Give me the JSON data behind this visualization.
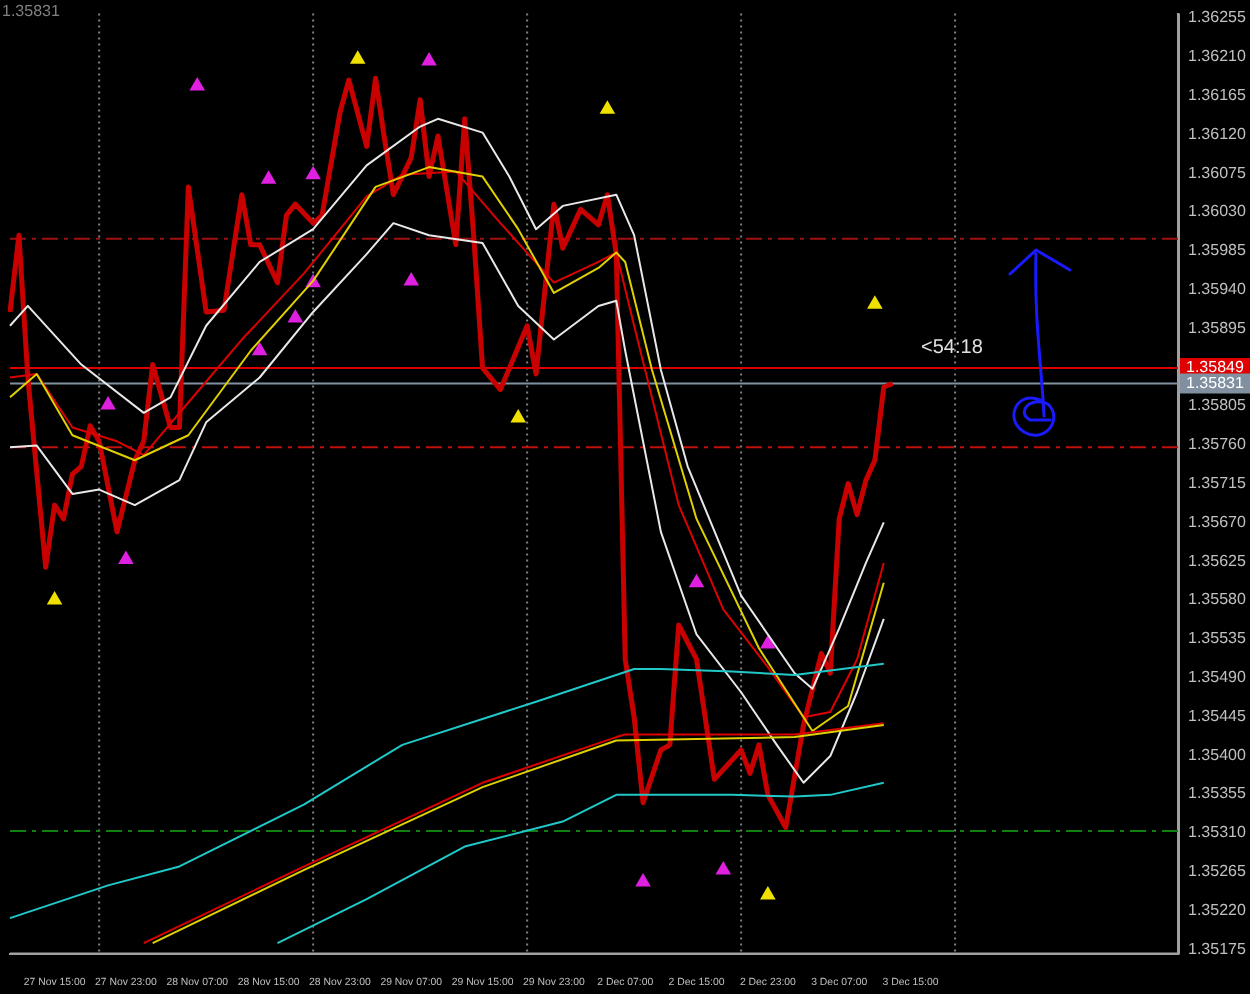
{
  "chart_data": {
    "type": "line",
    "legend": false,
    "ylim": [
      1.3517,
      1.3626
    ],
    "categories": [
      null,
      null,
      null,
      null,
      null,
      "27 Nov 15:00",
      null,
      null,
      null,
      null,
      null,
      null,
      null,
      "27 Nov 23:00",
      null,
      null,
      null,
      null,
      null,
      null,
      null,
      "28 Nov 07:00",
      null,
      null,
      null,
      null,
      null,
      null,
      null,
      "28 Nov 15:00",
      null,
      null,
      null,
      null,
      null,
      null,
      null,
      "28 Nov 23:00",
      null,
      null,
      null,
      null,
      null,
      null,
      null,
      "29 Nov 07:00",
      null,
      null,
      null,
      null,
      null,
      null,
      null,
      "29 Nov 15:00",
      null,
      null,
      null,
      null,
      null,
      null,
      null,
      "29 Nov 23:00",
      null,
      null,
      null,
      null,
      null,
      null,
      null,
      "2 Dec 07:00",
      null,
      null,
      null,
      null,
      null,
      null,
      null,
      "2 Dec 15:00",
      null,
      null,
      null,
      null,
      null,
      null,
      null,
      "2 Dec 23:00",
      null,
      null,
      null,
      null,
      null,
      null,
      null,
      "3 Dec 07:00",
      null,
      null,
      null,
      null,
      null,
      null,
      null,
      "3 Dec 15:00",
      null,
      null,
      null,
      null,
      null,
      null,
      null,
      null,
      null,
      null,
      null,
      null,
      null,
      null,
      null,
      null,
      null,
      null,
      null,
      null,
      null,
      null,
      null,
      null,
      null,
      null,
      null,
      null,
      null,
      null
    ],
    "yticks": [
      1.35175,
      {
        "value": 1.3522,
        "label": "1.35220"
      },
      1.35265,
      {
        "value": 1.3531,
        "label": "1.35310"
      },
      1.35355,
      {
        "value": 1.354,
        "label": "1.35400"
      },
      1.35445,
      {
        "value": 1.3549,
        "label": "1.35490"
      },
      1.35535,
      {
        "value": 1.3558,
        "label": "1.35580"
      },
      1.35625,
      {
        "value": 1.3567,
        "label": "1.35670"
      },
      1.35715,
      {
        "value": 1.3576,
        "label": "1.35760"
      },
      1.35805,
      {
        "value": 1.3585,
        "label": null
      },
      1.35895,
      {
        "value": 1.3594,
        "label": "1.35940"
      },
      1.35985,
      {
        "value": 1.3603,
        "label": "1.36030"
      },
      1.36075,
      {
        "value": 1.3612,
        "label": "1.36120"
      },
      1.36165,
      {
        "value": 1.3621,
        "label": "1.36210"
      },
      1.36255
    ],
    "series": [
      {
        "type": "line",
        "color": "#20c8c8",
        "values": [
          1.35211,
          null,
          null,
          null,
          null,
          null,
          null,
          null,
          null,
          null,
          null,
          1.35249,
          null,
          null,
          null,
          null,
          null,
          null,
          null,
          1.35271,
          null,
          null,
          null,
          null,
          null,
          null,
          null,
          null,
          null,
          null,
          null,
          null,
          null,
          1.35343,
          null,
          null,
          null,
          null,
          null,
          null,
          null,
          null,
          null,
          null,
          1.35412,
          null,
          null,
          null,
          null,
          null,
          null,
          null,
          null,
          null,
          null,
          null,
          null,
          null,
          null,
          1.35462,
          null,
          null,
          null,
          null,
          null,
          null,
          null,
          null,
          null,
          null,
          1.355,
          null,
          null,
          1.355,
          null,
          null,
          null,
          null,
          null,
          null,
          null,
          1.35497,
          null,
          null,
          null,
          null,
          null,
          null,
          1.35493,
          null,
          null,
          null,
          null,
          null,
          null,
          null,
          null,
          null,
          1.35506,
          null,
          null,
          null,
          null,
          null,
          null,
          null,
          null,
          null,
          null,
          null,
          null,
          null,
          null,
          null,
          null,
          null,
          null,
          null,
          null,
          null,
          null,
          null,
          null,
          null,
          null,
          null,
          null,
          null,
          null,
          null,
          null,
          null
        ]
      },
      {
        "type": "line",
        "color": "#20c8c8",
        "values": [
          null,
          null,
          null,
          null,
          null,
          null,
          null,
          null,
          null,
          null,
          null,
          null,
          null,
          null,
          null,
          null,
          null,
          null,
          null,
          null,
          null,
          null,
          null,
          null,
          null,
          null,
          null,
          null,
          null,
          null,
          1.35182,
          null,
          null,
          null,
          null,
          null,
          null,
          null,
          null,
          null,
          1.35233,
          null,
          null,
          null,
          null,
          null,
          null,
          null,
          null,
          null,
          null,
          1.35294,
          null,
          null,
          null,
          null,
          null,
          null,
          null,
          null,
          null,
          null,
          1.35323,
          null,
          null,
          null,
          null,
          null,
          1.35354,
          null,
          null,
          null,
          null,
          null,
          null,
          null,
          null,
          null,
          null,
          null,
          null,
          1.35354,
          null,
          null,
          null,
          null,
          null,
          null,
          1.35352,
          null,
          null,
          null,
          1.35354,
          null,
          null,
          null,
          null,
          null,
          1.35368,
          null,
          null,
          null,
          null,
          null,
          null,
          null,
          null,
          null,
          null,
          null,
          null,
          null,
          null,
          null,
          null,
          null,
          null,
          null,
          null,
          null,
          null,
          null,
          null,
          null,
          null,
          null,
          null,
          null,
          null,
          null,
          null,
          null
        ]
      },
      {
        "type": "line",
        "color": "#e0d000",
        "values": [
          null,
          null,
          null,
          null,
          null,
          null,
          null,
          null,
          null,
          null,
          null,
          null,
          null,
          null,
          null,
          null,
          1.35182,
          null,
          null,
          null,
          null,
          null,
          null,
          null,
          null,
          null,
          null,
          null,
          null,
          null,
          null,
          null,
          null,
          1.35267,
          null,
          null,
          null,
          null,
          null,
          null,
          null,
          null,
          null,
          null,
          null,
          null,
          null,
          null,
          null,
          null,
          null,
          null,
          null,
          1.35363,
          null,
          null,
          null,
          null,
          null,
          null,
          null,
          null,
          null,
          null,
          null,
          null,
          null,
          null,
          1.35417,
          null,
          null,
          null,
          null,
          null,
          null,
          null,
          null,
          null,
          null,
          null,
          null,
          null,
          null,
          null,
          null,
          null,
          null,
          null,
          1.35421,
          null,
          null,
          null,
          null,
          null,
          null,
          null,
          null,
          null,
          1.35435,
          null,
          null,
          null,
          null,
          null,
          null,
          null,
          null,
          null,
          null,
          null,
          null,
          null,
          null,
          null,
          null,
          null,
          null,
          null,
          null,
          null,
          null,
          null,
          null,
          null,
          null,
          null,
          null,
          null,
          null,
          null,
          null,
          null
        ]
      },
      {
        "type": "line",
        "color": "#dd0000",
        "values": [
          null,
          null,
          null,
          null,
          null,
          null,
          null,
          null,
          null,
          null,
          null,
          null,
          null,
          null,
          null,
          1.35182,
          null,
          null,
          null,
          null,
          null,
          null,
          null,
          null,
          null,
          null,
          null,
          null,
          null,
          null,
          null,
          null,
          null,
          1.35271,
          null,
          null,
          null,
          null,
          null,
          null,
          null,
          null,
          null,
          null,
          null,
          null,
          null,
          null,
          null,
          null,
          null,
          null,
          null,
          1.35368,
          null,
          null,
          null,
          null,
          null,
          null,
          null,
          null,
          null,
          null,
          null,
          null,
          null,
          null,
          1.35421,
          1.35424,
          null,
          null,
          null,
          null,
          null,
          null,
          null,
          null,
          null,
          null,
          null,
          null,
          null,
          null,
          null,
          null,
          null,
          null,
          1.35424,
          null,
          null,
          null,
          null,
          null,
          null,
          null,
          null,
          null,
          1.35437,
          null,
          null,
          null,
          null,
          null,
          null,
          null,
          null,
          null,
          null,
          null,
          null,
          null,
          null,
          null,
          null,
          null,
          null,
          null,
          null,
          null,
          null,
          null,
          null,
          null,
          null,
          null,
          null,
          null,
          null,
          null,
          null,
          null
        ]
      },
      {
        "type": "line",
        "color": "#e8e8e8",
        "values": [
          1.35898,
          null,
          1.35921,
          null,
          null,
          null,
          null,
          null,
          1.35853,
          null,
          null,
          null,
          null,
          null,
          null,
          1.35797,
          null,
          null,
          1.35815,
          null,
          null,
          null,
          1.35898,
          null,
          null,
          null,
          null,
          null,
          1.35972,
          null,
          null,
          null,
          null,
          null,
          1.3601,
          null,
          null,
          null,
          null,
          null,
          1.36084,
          null,
          null,
          null,
          null,
          null,
          1.36129,
          null,
          1.36138,
          null,
          null,
          null,
          null,
          1.36122,
          null,
          null,
          1.36071,
          null,
          null,
          1.3601,
          null,
          null,
          1.36037,
          null,
          null,
          null,
          null,
          null,
          1.3605,
          null,
          1.36003,
          null,
          null,
          1.35847,
          null,
          null,
          1.35735,
          null,
          null,
          null,
          null,
          null,
          1.35585,
          null,
          null,
          null,
          null,
          null,
          1.35495,
          null,
          1.35477,
          null,
          null,
          1.35547,
          null,
          null,
          1.35623,
          null,
          1.3567,
          null,
          null,
          null,
          null,
          null,
          null,
          null,
          null,
          null,
          null,
          null,
          null,
          null,
          null,
          null,
          null,
          null,
          null,
          null,
          null,
          null,
          null,
          null,
          null,
          null,
          null,
          null,
          null,
          null,
          null,
          null,
          null,
          null
        ]
      },
      {
        "type": "line",
        "color": "#e8e8e8",
        "values": [
          1.35757,
          null,
          null,
          1.35759,
          null,
          null,
          null,
          1.35703,
          null,
          null,
          1.35708,
          null,
          null,
          null,
          1.3569,
          null,
          null,
          null,
          null,
          1.35719,
          null,
          null,
          1.35786,
          null,
          null,
          null,
          null,
          null,
          1.35838,
          null,
          null,
          null,
          null,
          null,
          1.35914,
          null,
          null,
          null,
          null,
          null,
          1.35981,
          null,
          null,
          1.36017,
          null,
          null,
          null,
          1.36003,
          null,
          null,
          null,
          null,
          null,
          1.35994,
          null,
          null,
          null,
          1.35921,
          null,
          null,
          null,
          1.35882,
          null,
          null,
          null,
          null,
          1.35921,
          null,
          1.35927,
          1.35869,
          null,
          null,
          null,
          1.35659,
          null,
          null,
          null,
          1.3554,
          null,
          null,
          null,
          null,
          1.35473,
          null,
          null,
          null,
          1.35412,
          null,
          null,
          1.35368,
          null,
          null,
          1.35399,
          null,
          null,
          1.35473,
          null,
          null,
          1.35558,
          null,
          null,
          null,
          null,
          null,
          null,
          null,
          null,
          null,
          null,
          null,
          null,
          null,
          null,
          null,
          null,
          null,
          null,
          null,
          null,
          null,
          null,
          null,
          null,
          null,
          null,
          null,
          null,
          null,
          null,
          null,
          null,
          null
        ]
      },
      {
        "type": "line",
        "color": "#e0d000",
        "values": [
          1.35815,
          null,
          null,
          1.35842,
          null,
          null,
          null,
          1.35771,
          null,
          null,
          null,
          null,
          null,
          null,
          1.35742,
          null,
          null,
          null,
          null,
          null,
          1.35771,
          null,
          null,
          null,
          null,
          null,
          null,
          1.35869,
          null,
          null,
          null,
          null,
          null,
          null,
          1.3595,
          null,
          null,
          null,
          null,
          null,
          null,
          1.36059,
          null,
          null,
          null,
          null,
          null,
          1.36082,
          null,
          null,
          null,
          null,
          null,
          1.36071,
          null,
          null,
          null,
          1.3601,
          null,
          null,
          null,
          1.35936,
          null,
          null,
          null,
          null,
          1.35965,
          null,
          1.35983,
          1.35972,
          null,
          null,
          1.35847,
          null,
          null,
          null,
          null,
          1.35674,
          null,
          null,
          null,
          null,
          null,
          null,
          1.35524,
          null,
          null,
          null,
          null,
          null,
          1.35428,
          null,
          null,
          null,
          1.35457,
          null,
          null,
          null,
          1.356,
          null,
          null,
          null,
          null,
          null,
          null,
          null,
          null,
          null,
          null,
          null,
          null,
          null,
          null,
          null,
          null,
          null,
          null,
          null,
          null,
          null,
          null,
          null,
          null,
          null,
          null,
          null,
          null,
          null,
          null,
          null,
          null,
          null
        ]
      },
      {
        "type": "line",
        "color": "#dd0000",
        "values": [
          1.35838,
          null,
          null,
          1.35842,
          null,
          null,
          null,
          1.3578,
          null,
          null,
          null,
          null,
          1.35764,
          null,
          null,
          1.35748,
          null,
          null,
          null,
          null,
          1.35809,
          null,
          null,
          null,
          null,
          null,
          1.35882,
          null,
          null,
          null,
          null,
          null,
          null,
          1.35959,
          null,
          null,
          null,
          null,
          null,
          null,
          1.36048,
          null,
          null,
          null,
          1.36073,
          null,
          null,
          null,
          null,
          null,
          1.36077,
          null,
          null,
          null,
          null,
          1.36017,
          null,
          null,
          null,
          null,
          null,
          1.35948,
          null,
          null,
          null,
          null,
          1.35972,
          null,
          1.35983,
          null,
          1.35898,
          null,
          null,
          null,
          null,
          1.3569,
          null,
          null,
          null,
          null,
          1.35569,
          null,
          null,
          null,
          null,
          1.35502,
          null,
          null,
          null,
          1.35444,
          null,
          null,
          1.3545,
          null,
          null,
          1.35511,
          null,
          null,
          1.35623,
          null,
          null,
          null,
          null,
          null,
          null,
          null,
          null,
          null,
          null,
          null,
          null,
          null,
          null,
          null,
          null,
          null,
          null,
          null,
          null,
          null,
          null,
          null,
          null,
          null,
          null,
          null,
          null,
          null,
          null,
          null,
          null,
          null
        ]
      },
      {
        "type": "line",
        "color": "#c80000",
        "values": [
          1.35914,
          1.36003,
          1.35838,
          null,
          1.35618,
          1.3569,
          1.35674,
          1.35726,
          1.35735,
          1.35782,
          1.35764,
          null,
          1.35659,
          null,
          1.35742,
          1.35764,
          1.35853,
          null,
          1.3578,
          1.3578,
          1.36059,
          null,
          1.35914,
          null,
          1.35916,
          null,
          1.3605,
          1.35992,
          1.35992,
          null,
          1.35948,
          1.36026,
          1.36039,
          null,
          1.36017,
          1.36026,
          null,
          1.36145,
          1.36183,
          null,
          1.36106,
          1.36185,
          1.36115,
          1.3605,
          null,
          1.36093,
          1.3616,
          1.36071,
          1.36118,
          null,
          1.35992,
          1.36138,
          1.36003,
          1.35849,
          null,
          1.35824,
          null,
          null,
          1.35898,
          1.35842,
          null,
          1.36039,
          1.35988,
          null,
          1.36033,
          null,
          1.36015,
          1.3605,
          1.35981,
          1.35511,
          1.35444,
          1.35345,
          null,
          1.35406,
          1.35412,
          1.35551,
          null,
          1.35511,
          null,
          1.35372,
          null,
          null,
          1.35406,
          1.35379,
          1.35412,
          1.35354,
          null,
          1.35316,
          null,
          1.35435,
          null,
          1.35518,
          1.35495,
          1.35674,
          1.35715,
          1.35679,
          1.35719,
          1.35742,
          1.35827,
          1.35831,
          null,
          null,
          null,
          null,
          null,
          null,
          null,
          null,
          null,
          null,
          null,
          null,
          null,
          null,
          null,
          null,
          null,
          null,
          null,
          null,
          null,
          null,
          null,
          null,
          null,
          null,
          null,
          null,
          null,
          null,
          null,
          null
        ]
      },
      {
        "type": "scatter",
        "color": "#e020e0",
        "marker": "triangle",
        "values": [
          null,
          null,
          null,
          null,
          null,
          null,
          null,
          null,
          null,
          null,
          null,
          null,
          null,
          null,
          null,
          null,
          null,
          null,
          null,
          null,
          null,
          1.36176,
          null,
          null,
          null,
          null,
          null,
          null,
          null,
          1.36068,
          null,
          null,
          null,
          null,
          1.36073,
          null,
          null,
          null,
          null,
          null,
          null,
          null,
          null,
          null,
          null,
          null,
          null,
          1.36205,
          null,
          null,
          null,
          null,
          null,
          null,
          null,
          null,
          null,
          null,
          null,
          null,
          null,
          null,
          null,
          null,
          null,
          null,
          null,
          null,
          null,
          null,
          null,
          null,
          null,
          null,
          null,
          null,
          null,
          1.356,
          null,
          null,
          null,
          null,
          null,
          null,
          null,
          1.35529,
          null,
          null,
          null,
          null,
          null,
          null,
          null,
          null,
          null,
          null,
          null,
          null,
          null,
          null,
          null,
          null,
          null,
          null,
          null,
          null,
          null,
          null,
          null,
          null,
          null,
          null,
          null,
          null,
          null,
          null,
          null,
          null,
          null,
          null,
          null,
          null,
          null,
          null,
          null,
          null,
          null,
          null,
          null,
          null,
          null,
          null
        ]
      },
      {
        "type": "scatter",
        "color": "#e020e0",
        "marker": "triangle",
        "values": [
          null,
          null,
          null,
          null,
          null,
          null,
          null,
          null,
          null,
          null,
          null,
          1.35806,
          null,
          1.35627,
          null,
          null,
          null,
          null,
          null,
          null,
          null,
          null,
          null,
          null,
          null,
          null,
          null,
          null,
          1.35869,
          null,
          null,
          null,
          1.35907,
          null,
          1.35948,
          null,
          null,
          null,
          null,
          null,
          null,
          null,
          null,
          null,
          null,
          1.3595,
          null,
          null,
          null,
          null,
          null,
          null,
          null,
          null,
          null,
          null,
          null,
          null,
          null,
          null,
          null,
          null,
          null,
          null,
          null,
          null,
          null,
          null,
          null,
          null,
          null,
          1.35253,
          null,
          null,
          null,
          null,
          null,
          null,
          null,
          null,
          1.35267,
          null,
          null,
          null,
          null,
          null,
          null,
          null,
          null,
          null,
          null,
          null,
          null,
          null,
          null,
          null,
          null,
          null,
          null,
          null,
          null,
          null,
          null,
          null,
          null,
          null,
          null,
          null,
          null,
          null,
          null,
          null,
          null,
          null,
          null,
          null,
          null,
          null,
          null,
          null,
          null,
          null,
          null,
          null,
          null,
          null,
          null,
          null,
          null,
          null,
          null,
          null
        ]
      },
      {
        "type": "scatter",
        "color": "#f0e000",
        "marker": "triangle",
        "values": [
          null,
          null,
          null,
          null,
          null,
          1.3558,
          null,
          null,
          null,
          null,
          null,
          null,
          null,
          null,
          null,
          null,
          null,
          null,
          null,
          null,
          null,
          null,
          null,
          null,
          null,
          null,
          null,
          null,
          null,
          null,
          null,
          null,
          null,
          null,
          null,
          null,
          null,
          null,
          null,
          1.36207,
          null,
          null,
          null,
          null,
          null,
          null,
          null,
          null,
          null,
          null,
          null,
          null,
          null,
          null,
          null,
          null,
          null,
          1.35791,
          null,
          null,
          null,
          null,
          null,
          null,
          null,
          null,
          null,
          1.36149,
          null,
          null,
          null,
          null,
          null,
          null,
          null,
          null,
          null,
          null,
          null,
          null,
          null,
          null,
          null,
          null,
          null,
          1.35238,
          null,
          null,
          null,
          null,
          null,
          null,
          null,
          null,
          null,
          null,
          null,
          1.35923,
          null,
          null,
          null,
          null,
          null,
          null,
          null,
          null,
          null,
          null,
          null,
          null,
          null,
          null,
          null,
          null,
          null,
          null,
          null,
          null,
          null,
          null,
          null,
          null,
          null,
          null,
          null,
          null,
          null,
          null,
          null,
          null,
          null,
          null
        ]
      }
    ],
    "ref_lines": [
      {
        "axis": "y",
        "value": 1.35999,
        "color": "#a01010",
        "line_style": "dashed"
      },
      {
        "axis": "y",
        "value": 1.35757,
        "color": "#c01010",
        "line_style": "dashed"
      },
      {
        "axis": "y",
        "value": 1.35312,
        "color": "#108010",
        "line_style": "dashed"
      },
      {
        "axis": "y",
        "value": 1.35849,
        "color": "#e00000",
        "line_style": "solid",
        "label": "1.35849"
      },
      {
        "axis": "y",
        "value": 1.35831,
        "color": "#8090a0",
        "line_style": "solid",
        "label": "1.35831"
      }
    ],
    "annotations": [
      "1.35831",
      "<54:18"
    ]
  }
}
